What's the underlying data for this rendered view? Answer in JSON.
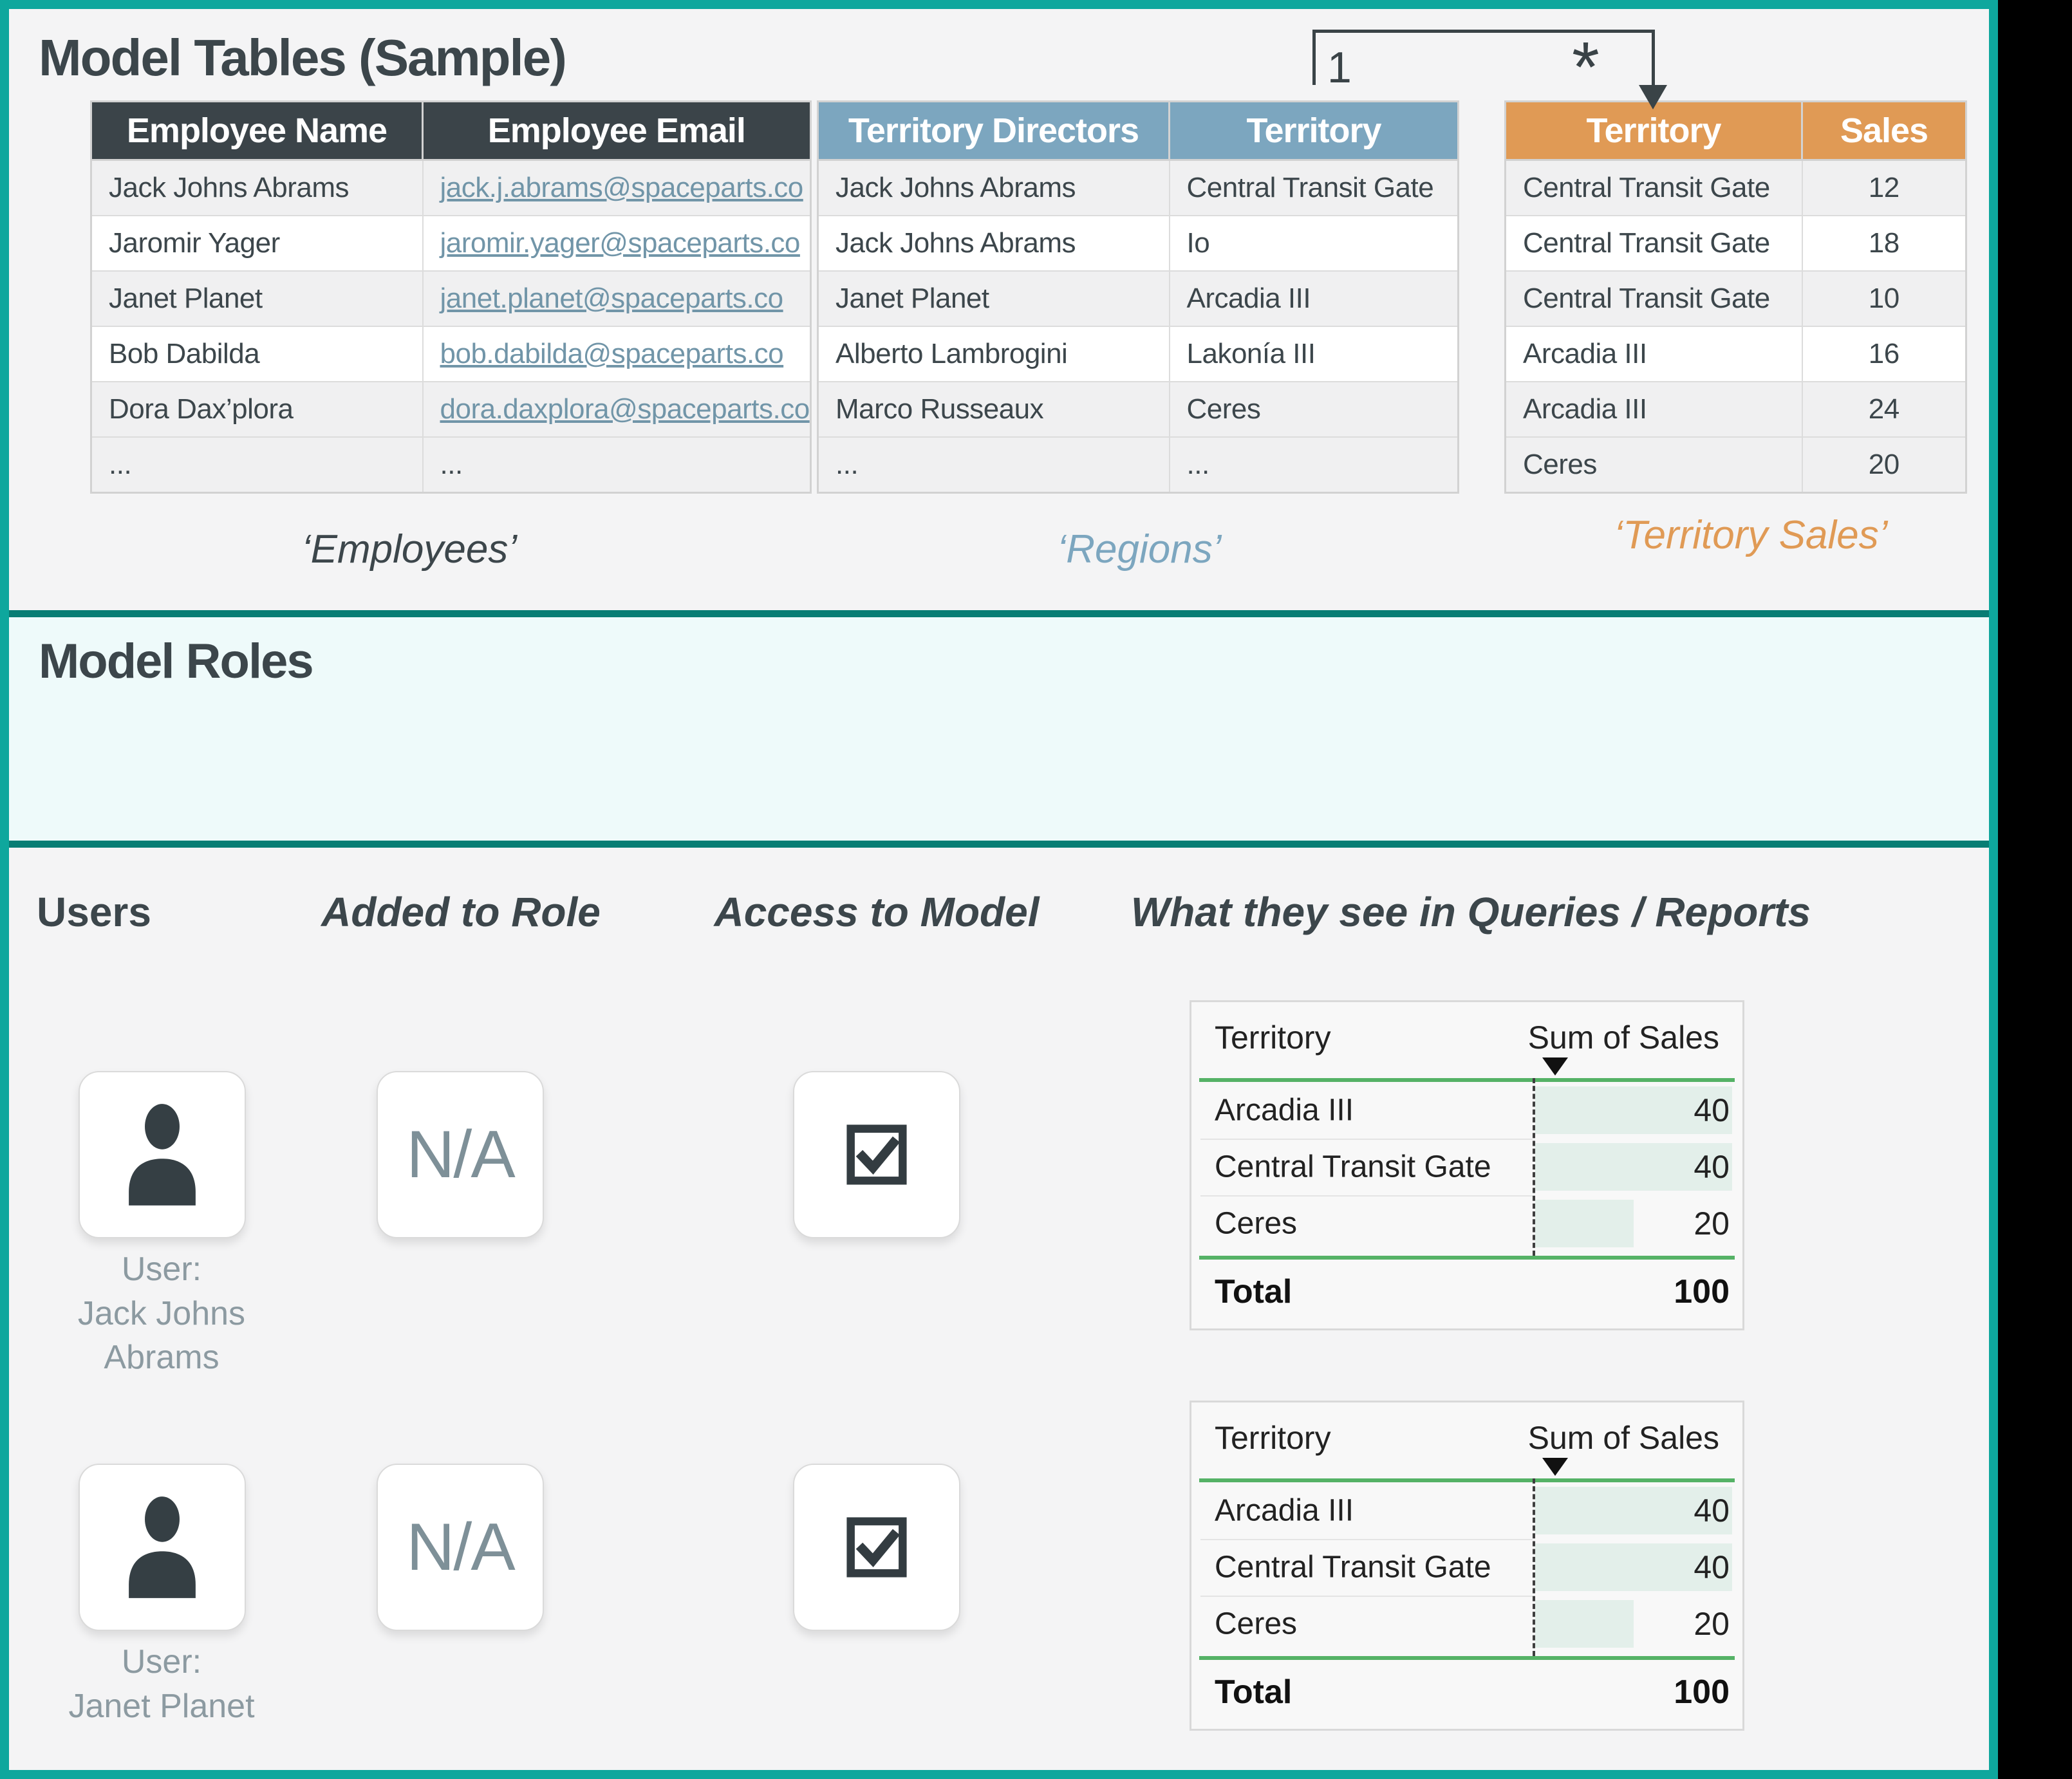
{
  "colors": {
    "frame_teal": "#0ea79d",
    "separator_teal": "#087d74",
    "roles_background": "#eefafa",
    "employees_header": "#3b4449",
    "regions_header": "#7ca6bf",
    "sales_header": "#e09a55",
    "link_blue": "#7195a8",
    "report_green": "#55b266",
    "report_bar_fill": "#e3efea",
    "text_dark": "#3c464b",
    "muted_gray": "#8c9aa1"
  },
  "icons": {
    "user": "person",
    "access": "checkbox-checked",
    "sort": "triangle-down",
    "relationship_arrow": "arrow-down"
  },
  "model_tables": {
    "title": "Model Tables (Sample)",
    "relationship": {
      "one_label": "1",
      "many_label": "*"
    },
    "employees": {
      "caption": "‘Employees’",
      "columns": [
        "Employee Name",
        "Employee Email"
      ],
      "rows": [
        [
          "Jack Johns Abrams",
          "jack.j.abrams@spaceparts.co"
        ],
        [
          "Jaromir Yager",
          "jaromir.yager@spaceparts.co"
        ],
        [
          "Janet Planet",
          "janet.planet@spaceparts.co"
        ],
        [
          "Bob Dabilda",
          "bob.dabilda@spaceparts.co"
        ],
        [
          "Dora Dax’plora",
          "dora.daxplora@spaceparts.co"
        ],
        [
          "...",
          "..."
        ]
      ]
    },
    "regions": {
      "caption": "‘Regions’",
      "columns": [
        "Territory Directors",
        "Territory"
      ],
      "rows": [
        [
          "Jack Johns Abrams",
          "Central Transit Gate"
        ],
        [
          "Jack Johns Abrams",
          "Io"
        ],
        [
          "Janet Planet",
          "Arcadia III"
        ],
        [
          "Alberto Lambrogini",
          "Lakonía III"
        ],
        [
          "Marco Russeaux",
          "Ceres"
        ],
        [
          "...",
          "..."
        ]
      ]
    },
    "territory_sales": {
      "caption": "‘Territory Sales’",
      "columns": [
        "Territory",
        "Sales"
      ],
      "rows": [
        [
          "Central Transit Gate",
          "12"
        ],
        [
          "Central Transit Gate",
          "18"
        ],
        [
          "Central Transit Gate",
          "10"
        ],
        [
          "Arcadia III",
          "16"
        ],
        [
          "Arcadia III",
          "24"
        ],
        [
          "Ceres",
          "20"
        ]
      ]
    }
  },
  "model_roles": {
    "title": "Model Roles"
  },
  "access_section": {
    "headers": {
      "users": "Users",
      "added_to_role": "Added to Role",
      "access_to_model": "Access to Model",
      "queries": "What they see in Queries / Reports"
    },
    "users": [
      {
        "added_to_role": "N/A",
        "label": "User:\nJack Johns\nAbrams"
      },
      {
        "added_to_role": "N/A",
        "label": "User:\nJanet Planet"
      }
    ],
    "report": {
      "columns": [
        "Territory",
        "Sum of Sales"
      ],
      "rows": [
        [
          "Arcadia III",
          40
        ],
        [
          "Central Transit Gate",
          40
        ],
        [
          "Ceres",
          20
        ]
      ],
      "total_label": "Total",
      "total_value": 100
    }
  }
}
